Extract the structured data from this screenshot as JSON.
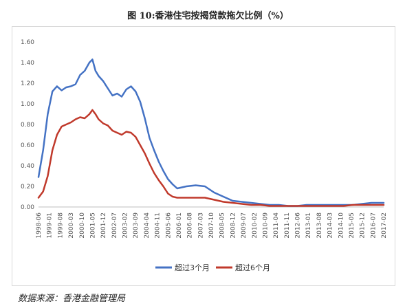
{
  "title": "图 10:香港住宅按揭贷款拖欠比例（%）",
  "source": "数据来源：香港金融管理局",
  "chart_data": {
    "type": "line",
    "title": "图 10:香港住宅按揭贷款拖欠比例（%）",
    "xlabel": "",
    "ylabel": "",
    "ylim": [
      0,
      1.6
    ],
    "yticks": [
      "0.00",
      "0.20",
      "0.40",
      "0.60",
      "0.80",
      "1.00",
      "1.20",
      "1.40",
      "1.60"
    ],
    "grid": false,
    "legend": "bottom",
    "x_ticks": [
      "1998-06",
      "1999-01",
      "1999-08",
      "2000-03",
      "2000-10",
      "2001-05",
      "2001-12",
      "2002-07",
      "2003-02",
      "2003-09",
      "2004-04",
      "2004-11",
      "2005-06",
      "2006-01",
      "2006-08",
      "2007-03",
      "2007-10",
      "2008-05",
      "2008-12",
      "2009-07",
      "2010-02",
      "2010-09",
      "2011-04",
      "2011-11",
      "2012-06",
      "2013-01",
      "2013-08",
      "2014-03",
      "2014-10",
      "2015-05",
      "2015-12",
      "2016-07",
      "2017-02"
    ],
    "series": [
      {
        "name": "超过3个月",
        "color": "#4472c4",
        "x": [
          "1998-06",
          "1998-09",
          "1998-12",
          "1999-03",
          "1999-06",
          "1999-09",
          "1999-12",
          "2000-03",
          "2000-06",
          "2000-09",
          "2000-12",
          "2001-03",
          "2001-05",
          "2001-07",
          "2001-09",
          "2001-12",
          "2002-03",
          "2002-06",
          "2002-09",
          "2002-12",
          "2003-03",
          "2003-06",
          "2003-09",
          "2003-12",
          "2004-03",
          "2004-06",
          "2004-09",
          "2004-12",
          "2005-03",
          "2005-06",
          "2005-09",
          "2005-12",
          "2006-06",
          "2006-12",
          "2007-06",
          "2007-12",
          "2008-06",
          "2008-12",
          "2009-06",
          "2009-12",
          "2010-06",
          "2010-12",
          "2011-06",
          "2011-12",
          "2012-06",
          "2012-12",
          "2013-06",
          "2013-12",
          "2014-06",
          "2014-12",
          "2015-06",
          "2015-12",
          "2016-06",
          "2016-12",
          "2017-02"
        ],
        "values": [
          0.29,
          0.55,
          0.9,
          1.12,
          1.17,
          1.13,
          1.16,
          1.17,
          1.19,
          1.28,
          1.32,
          1.4,
          1.43,
          1.32,
          1.27,
          1.22,
          1.15,
          1.08,
          1.1,
          1.07,
          1.14,
          1.17,
          1.12,
          1.02,
          0.86,
          0.67,
          0.55,
          0.44,
          0.35,
          0.27,
          0.22,
          0.18,
          0.2,
          0.21,
          0.2,
          0.14,
          0.1,
          0.06,
          0.05,
          0.04,
          0.03,
          0.02,
          0.02,
          0.01,
          0.01,
          0.02,
          0.02,
          0.02,
          0.02,
          0.02,
          0.02,
          0.03,
          0.04,
          0.04,
          0.04
        ]
      },
      {
        "name": "超过6个月",
        "color": "#c0392b",
        "x": [
          "1998-06",
          "1998-09",
          "1998-12",
          "1999-03",
          "1999-06",
          "1999-09",
          "1999-12",
          "2000-03",
          "2000-06",
          "2000-09",
          "2000-12",
          "2001-03",
          "2001-05",
          "2001-07",
          "2001-09",
          "2001-12",
          "2002-03",
          "2002-06",
          "2002-09",
          "2002-12",
          "2003-03",
          "2003-06",
          "2003-09",
          "2003-12",
          "2004-03",
          "2004-06",
          "2004-09",
          "2004-12",
          "2005-03",
          "2005-06",
          "2005-09",
          "2005-12",
          "2006-06",
          "2006-12",
          "2007-06",
          "2007-12",
          "2008-06",
          "2008-12",
          "2009-06",
          "2009-12",
          "2010-06",
          "2010-12",
          "2011-06",
          "2011-12",
          "2012-06",
          "2012-12",
          "2013-06",
          "2013-12",
          "2014-06",
          "2014-12",
          "2015-06",
          "2015-12",
          "2016-06",
          "2016-12",
          "2017-02"
        ],
        "values": [
          0.09,
          0.15,
          0.3,
          0.55,
          0.7,
          0.78,
          0.8,
          0.82,
          0.85,
          0.87,
          0.86,
          0.9,
          0.94,
          0.9,
          0.85,
          0.81,
          0.79,
          0.74,
          0.72,
          0.7,
          0.73,
          0.72,
          0.68,
          0.6,
          0.52,
          0.42,
          0.33,
          0.26,
          0.2,
          0.13,
          0.1,
          0.09,
          0.09,
          0.09,
          0.09,
          0.07,
          0.05,
          0.04,
          0.03,
          0.02,
          0.02,
          0.01,
          0.01,
          0.01,
          0.01,
          0.01,
          0.01,
          0.01,
          0.01,
          0.01,
          0.02,
          0.02,
          0.02,
          0.02,
          0.02
        ]
      }
    ]
  }
}
